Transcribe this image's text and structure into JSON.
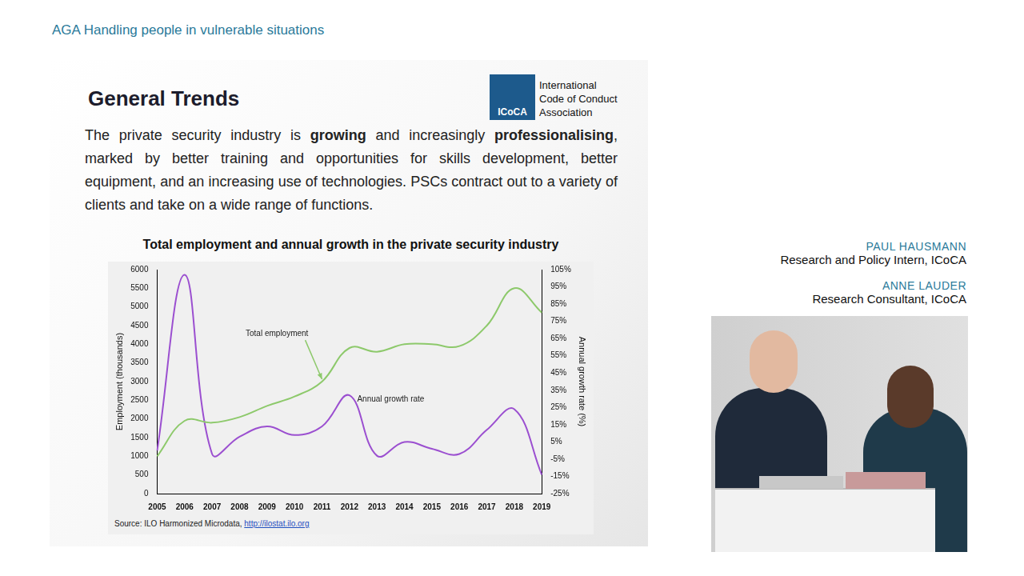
{
  "page": {
    "header": "AGA Handling people in vulnerable situations",
    "slide_title": "General Trends",
    "logo": {
      "mark": "ICoCA",
      "text": [
        "International",
        "Code of Conduct",
        "Association"
      ]
    },
    "paragraph": [
      {
        "text": "The private security industry is ",
        "bold": false
      },
      {
        "text": "growing",
        "bold": true
      },
      {
        "text": " and increasingly ",
        "bold": false
      },
      {
        "text": "professionalising",
        "bold": true
      },
      {
        "text": ", marked by better training and opportunities for skills development, better equipment, and an increasing use of technologies. PSCs contract out to a variety of clients and take on a wide range of functions.",
        "bold": false
      }
    ],
    "speakers": [
      {
        "name": "PAUL HAUSMANN",
        "role": "Research and Policy Intern, ICoCA"
      },
      {
        "name": "ANNE LAUDER",
        "role": "Research Consultant, ICoCA"
      }
    ]
  },
  "chart_data": {
    "type": "line",
    "title": "Total employment and annual growth in the private security industry",
    "source_label": "Source: ILO Harmonized Microdata,",
    "source_link": "http://ilostat.ilo.org",
    "categories": [
      "2005",
      "2006",
      "2007",
      "2008",
      "2009",
      "2010",
      "2011",
      "2012",
      "2013",
      "2014",
      "2015",
      "2016",
      "2017",
      "2018",
      "2019"
    ],
    "series": [
      {
        "name": "Total employment",
        "color": "#8dc96b",
        "axis": "y",
        "values": [
          1000,
          1950,
          1900,
          2050,
          2350,
          2600,
          3000,
          3900,
          3800,
          4000,
          4000,
          3950,
          4500,
          5500,
          4850
        ]
      },
      {
        "name": "Annual growth rate",
        "color": "#9b4fd0",
        "axis": "y2",
        "values": [
          0,
          102,
          -2,
          8,
          14,
          9,
          14,
          32,
          -3,
          5,
          1,
          -2,
          12,
          24,
          -14
        ]
      }
    ],
    "y_label": "Employment (thousands)",
    "y2_label": "Annual growth rate (%)",
    "ylim": [
      0,
      6000
    ],
    "yticks": [
      0,
      500,
      1000,
      1500,
      2000,
      2500,
      3000,
      3500,
      4000,
      4500,
      5000,
      5500,
      6000
    ],
    "y2lim": [
      -25,
      105
    ],
    "y2ticks": [
      {
        "value": -25,
        "label": "-25%"
      },
      {
        "value": -15,
        "label": "-15%"
      },
      {
        "value": -5,
        "label": "-5%"
      },
      {
        "value": 5,
        "label": "5%"
      },
      {
        "value": 15,
        "label": "15%"
      },
      {
        "value": 25,
        "label": "25%"
      },
      {
        "value": 35,
        "label": "35%"
      },
      {
        "value": 45,
        "label": "45%"
      },
      {
        "value": 55,
        "label": "55%"
      },
      {
        "value": 65,
        "label": "65%"
      },
      {
        "value": 75,
        "label": "75%"
      },
      {
        "value": 85,
        "label": "85%"
      },
      {
        "value": 95,
        "label": "95%"
      },
      {
        "value": 105,
        "label": "105%"
      }
    ],
    "grid": false
  }
}
